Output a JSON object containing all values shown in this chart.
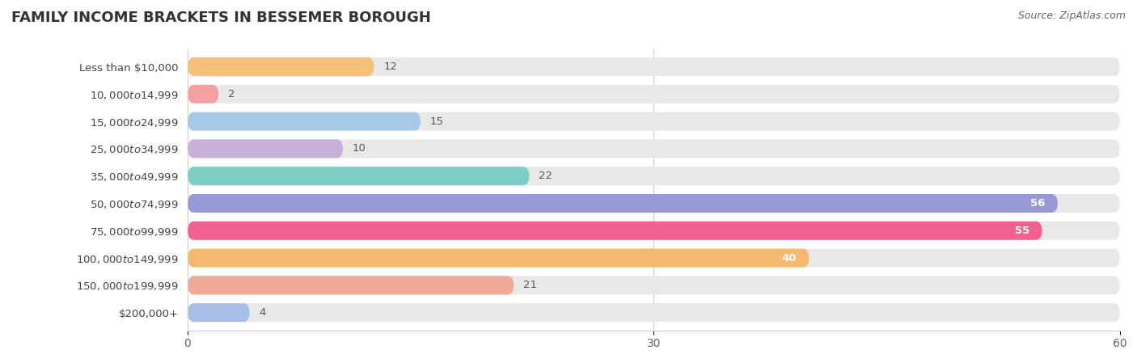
{
  "title": "FAMILY INCOME BRACKETS IN BESSEMER BOROUGH",
  "source": "Source: ZipAtlas.com",
  "categories": [
    "Less than $10,000",
    "$10,000 to $14,999",
    "$15,000 to $24,999",
    "$25,000 to $34,999",
    "$35,000 to $49,999",
    "$50,000 to $74,999",
    "$75,000 to $99,999",
    "$100,000 to $149,999",
    "$150,000 to $199,999",
    "$200,000+"
  ],
  "values": [
    12,
    2,
    15,
    10,
    22,
    56,
    55,
    40,
    21,
    4
  ],
  "bar_colors": [
    "#F5C07A",
    "#F4A0A0",
    "#A8C8E8",
    "#C9AED8",
    "#7ECEC8",
    "#9898D8",
    "#F06090",
    "#F5B870",
    "#F0A898",
    "#A8C0E8"
  ],
  "xlim": [
    0,
    60
  ],
  "xticks": [
    0,
    30,
    60
  ],
  "bar_bg_color": "#e8e8e8",
  "title_fontsize": 13,
  "label_fontsize": 9.5,
  "value_fontsize": 9.5,
  "bar_height": 0.68,
  "value_inside_threshold": 28
}
